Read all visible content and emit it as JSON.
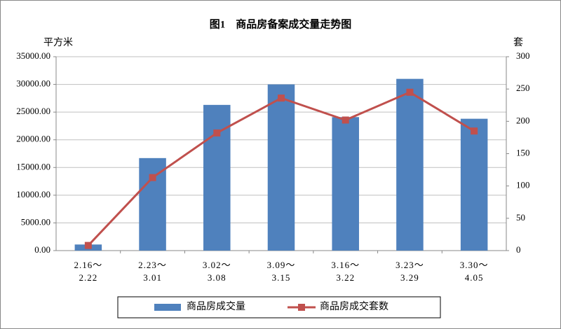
{
  "chart_data": {
    "type": "bar-line",
    "title": "图1　商品房备案成交量走势图",
    "y_label": "平方米",
    "y2_label": "套",
    "categories": [
      "2.16～\n2.22",
      "2.23～\n3.01",
      "3.02～\n3.08",
      "3.09～\n3.15",
      "3.16～\n3.22",
      "3.23～\n3.29",
      "3.30～\n4.05"
    ],
    "series": [
      {
        "name": "商品房成交量",
        "type": "bar",
        "color": "#4f81bd",
        "values": [
          1100,
          16700,
          26300,
          30000,
          24100,
          31000,
          23800
        ]
      },
      {
        "name": "商品房成交套数",
        "type": "line",
        "axis": "y2",
        "color": "#c0504d",
        "values": [
          8,
          113,
          182,
          236,
          202,
          245,
          185
        ]
      }
    ],
    "ylim": [
      0,
      35000
    ],
    "yticks": [
      {
        "value": 0,
        "label": "0.00"
      },
      {
        "value": 5000,
        "label": "5000.00"
      },
      {
        "value": 10000,
        "label": "10000.00"
      },
      {
        "value": 15000,
        "label": "15000.00"
      },
      {
        "value": 20000,
        "label": "20000.00"
      },
      {
        "value": 25000,
        "label": "25000.00"
      },
      {
        "value": 30000,
        "label": "30000.00"
      },
      {
        "value": 35000,
        "label": "35000.00"
      }
    ],
    "y2lim": [
      0,
      300
    ],
    "y2ticks": [
      0,
      50,
      100,
      150,
      200,
      250,
      300
    ],
    "grid": true,
    "legend": "bottom"
  }
}
